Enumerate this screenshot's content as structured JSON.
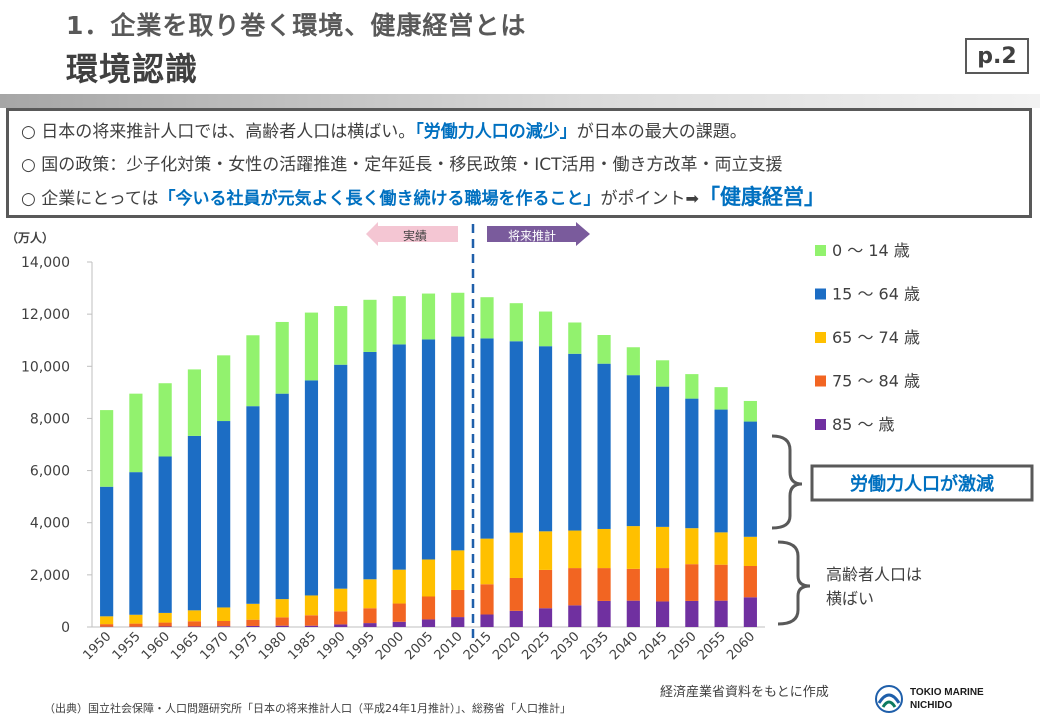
{
  "header": {
    "section_title": "1．企業を取り巻く環境、健康経営とは",
    "slide_title": "環境認識",
    "page_number": "p.2"
  },
  "summary": {
    "line1": {
      "pre": "○ 日本の将来推計人口では、高齢者人口は横ばい。",
      "highlight": "「労働力人口の減少」",
      "post": "が日本の最大の課題。"
    },
    "line2": {
      "text": "○ 国の政策：少子化対策・女性の活躍推進・定年延長・移民政策・ICT活用・働き方改革・両立支援"
    },
    "line3": {
      "pre": "○ 企業にとっては",
      "highlight": "「今いる社員が元気よく長く働き続ける職場を作ること」",
      "mid": "がポイント",
      "arrow": "➡",
      "highlight_big": "「健康経営」"
    }
  },
  "colors": {
    "age_0_14": "#92f26e",
    "age_15_64": "#1c6dc4",
    "age_65_74": "#ffc000",
    "age_75_84": "#f26522",
    "age_85_plus": "#7030a0",
    "accent_blue": "#0070c0",
    "divider_blue": "#1f5faa",
    "actual_arrow": "#f4c6d3",
    "forecast_arrow": "#7a5b9c"
  },
  "chart_data": {
    "type": "bar",
    "stacked": true,
    "unit_label": "（万人）",
    "ylim": [
      0,
      14000
    ],
    "yticks": [
      "0",
      "2,000",
      "4,000",
      "6,000",
      "8,000",
      "10,000",
      "12,000",
      "14,000"
    ],
    "grid": false,
    "legend_position": "right",
    "categories": [
      "1950",
      "1955",
      "1960",
      "1965",
      "1970",
      "1975",
      "1980",
      "1985",
      "1990",
      "1995",
      "2000",
      "2005",
      "2010",
      "2015",
      "2020",
      "2025",
      "2030",
      "2035",
      "2040",
      "2045",
      "2050",
      "2055",
      "2060"
    ],
    "series": [
      {
        "name": "85 ～ 歳",
        "color_key": "age_85_plus",
        "values": [
          10,
          10,
          20,
          20,
          30,
          40,
          50,
          50,
          100,
          150,
          200,
          290,
          380,
          480,
          620,
          720,
          830,
          1000,
          1010,
          980,
          1000,
          1010,
          1140
        ]
      },
      {
        "name": "75 ～ 84 歳",
        "color_key": "age_75_84",
        "values": [
          100,
          120,
          150,
          200,
          200,
          240,
          320,
          400,
          500,
          570,
          700,
          880,
          1040,
          1160,
          1260,
          1470,
          1430,
          1260,
          1220,
          1280,
          1410,
          1380,
          1200
        ]
      },
      {
        "name": "65 ～ 74 歳",
        "color_key": "age_65_74",
        "values": [
          300,
          340,
          370,
          420,
          520,
          610,
          700,
          760,
          870,
          1110,
          1300,
          1420,
          1520,
          1750,
          1740,
          1480,
          1440,
          1500,
          1640,
          1580,
          1380,
          1240,
          1120
        ]
      },
      {
        "name": "15 ～ 64 歳",
        "color_key": "age_15_64",
        "values": [
          4970,
          5470,
          6000,
          6690,
          7150,
          7580,
          7880,
          8250,
          8590,
          8720,
          8640,
          8440,
          8200,
          7680,
          7340,
          7100,
          6780,
          6340,
          5790,
          5380,
          4970,
          4710,
          4420
        ]
      },
      {
        "name": "0 ～ 14 歳",
        "color_key": "age_0_14",
        "values": [
          2940,
          3010,
          2810,
          2550,
          2520,
          2720,
          2750,
          2600,
          2250,
          2000,
          1850,
          1760,
          1680,
          1580,
          1460,
          1330,
          1200,
          1100,
          1070,
          1010,
          940,
          860,
          790
        ]
      }
    ],
    "legend_order": [
      "0 ～ 14 歳",
      "15 ～ 64 歳",
      "65 ～ 74 歳",
      "75 ～ 84 歳",
      "85 ～ 歳"
    ],
    "annotations": {
      "actual_label": "実績",
      "forecast_label": "将来推計",
      "labor_force_label": "労働力人口が激減",
      "elderly_label_line1": "高齢者人口は",
      "elderly_label_line2": "横ばい"
    }
  },
  "footer": {
    "source": "（出典）国立社会保障・人口問題研究所「日本の将来推計人口（平成24年1月推計）」、総務省「人口推計」",
    "created_by": "経済産業省資料をもとに作成",
    "logo_line1": "TOKIO MARINE",
    "logo_line2": "NICHIDO"
  }
}
